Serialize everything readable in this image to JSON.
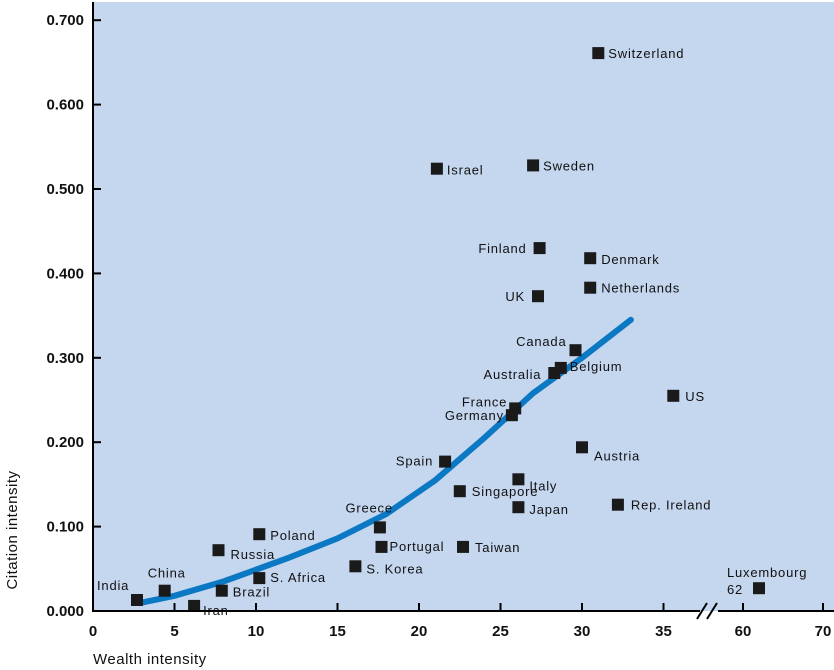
{
  "chart_data": {
    "type": "scatter",
    "title": "",
    "xlabel": "Wealth intensity",
    "ylabel": "Citation intensity",
    "xlim": [
      0,
      37
    ],
    "ylim": [
      0,
      0.72
    ],
    "x_ticks": [
      "0",
      "5",
      "10",
      "15",
      "20",
      "25",
      "30",
      "35"
    ],
    "x_ticks_broken": [
      "60",
      "70"
    ],
    "y_ticks": [
      "0.000",
      "0.100",
      "0.200",
      "0.300",
      "0.400",
      "0.500",
      "0.600",
      "0.700"
    ],
    "grid": false,
    "axis_break": true,
    "colors": {
      "plot_background": "#c5d6ef",
      "marker": "#1a1a1a",
      "trend_line": "#0a78c2"
    },
    "trend_line": [
      [
        3,
        0.01
      ],
      [
        5,
        0.018
      ],
      [
        8,
        0.035
      ],
      [
        12,
        0.063
      ],
      [
        15,
        0.086
      ],
      [
        18,
        0.115
      ],
      [
        21,
        0.155
      ],
      [
        24,
        0.205
      ],
      [
        27,
        0.258
      ],
      [
        30,
        0.3
      ],
      [
        33,
        0.345
      ]
    ],
    "points": [
      {
        "name": "Switzerland",
        "x": 31.0,
        "y": 0.661
      },
      {
        "name": "Sweden",
        "x": 27.0,
        "y": 0.528
      },
      {
        "name": "Israel",
        "x": 21.1,
        "y": 0.524
      },
      {
        "name": "Finland",
        "x": 27.4,
        "y": 0.43
      },
      {
        "name": "Denmark",
        "x": 30.5,
        "y": 0.418
      },
      {
        "name": "Netherlands",
        "x": 30.5,
        "y": 0.383
      },
      {
        "name": "UK",
        "x": 27.3,
        "y": 0.373
      },
      {
        "name": "Canada",
        "x": 29.6,
        "y": 0.309
      },
      {
        "name": "Belgium",
        "x": 28.7,
        "y": 0.288
      },
      {
        "name": "Australia",
        "x": 28.3,
        "y": 0.282
      },
      {
        "name": "US",
        "x": 35.6,
        "y": 0.255
      },
      {
        "name": "France",
        "x": 25.9,
        "y": 0.24
      },
      {
        "name": "Germany",
        "x": 25.7,
        "y": 0.232
      },
      {
        "name": "Austria",
        "x": 30.0,
        "y": 0.194
      },
      {
        "name": "Spain",
        "x": 21.6,
        "y": 0.177
      },
      {
        "name": "Italy",
        "x": 26.1,
        "y": 0.156
      },
      {
        "name": "Singapore",
        "x": 22.5,
        "y": 0.142
      },
      {
        "name": "Rep. Ireland",
        "x": 32.2,
        "y": 0.126
      },
      {
        "name": "Japan",
        "x": 26.1,
        "y": 0.123
      },
      {
        "name": "Greece",
        "x": 17.6,
        "y": 0.099
      },
      {
        "name": "Poland",
        "x": 10.2,
        "y": 0.091
      },
      {
        "name": "Portugal",
        "x": 17.7,
        "y": 0.076
      },
      {
        "name": "Taiwan",
        "x": 22.7,
        "y": 0.076
      },
      {
        "name": "Russia",
        "x": 7.7,
        "y": 0.072
      },
      {
        "name": "S. Korea",
        "x": 16.1,
        "y": 0.053
      },
      {
        "name": "S. Africa",
        "x": 10.2,
        "y": 0.039
      },
      {
        "name": "China",
        "x": 4.4,
        "y": 0.024
      },
      {
        "name": "Brazil",
        "x": 7.9,
        "y": 0.024
      },
      {
        "name": "India",
        "x": 2.7,
        "y": 0.013
      },
      {
        "name": "Iran",
        "x": 6.2,
        "y": 0.006
      }
    ],
    "broken_points": [
      {
        "name": "Luxembourg",
        "name2": "62",
        "x": 62,
        "y": 0.027
      }
    ]
  }
}
